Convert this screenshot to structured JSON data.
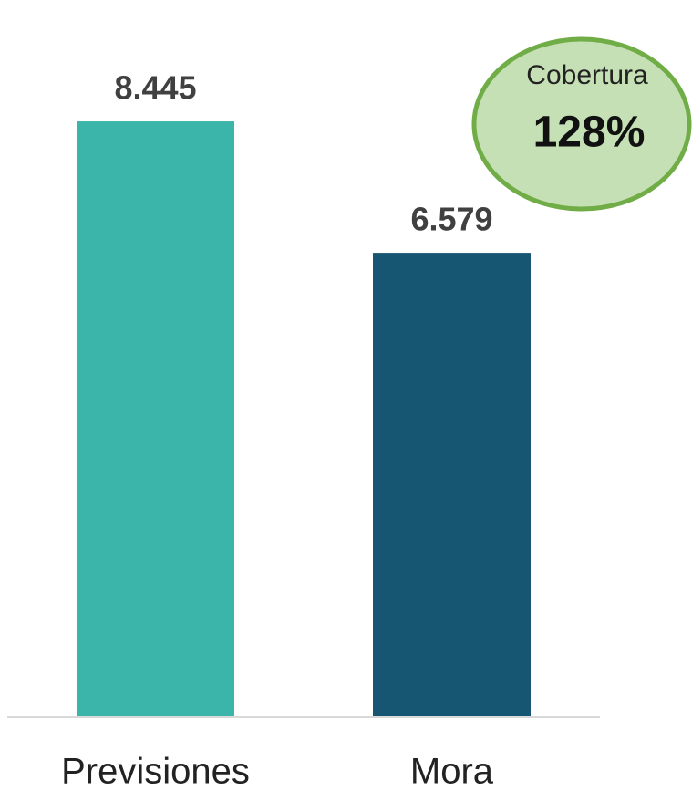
{
  "chart_data": {
    "type": "bar",
    "categories": [
      "Previsiones",
      "Mora"
    ],
    "values": [
      8445,
      6579
    ],
    "value_labels": [
      "8.445",
      "6.579"
    ],
    "colors": [
      "#3bb5a9",
      "#175673"
    ],
    "ylim": [
      0,
      10000
    ],
    "annotation": {
      "title": "Cobertura",
      "text": "128%"
    }
  }
}
